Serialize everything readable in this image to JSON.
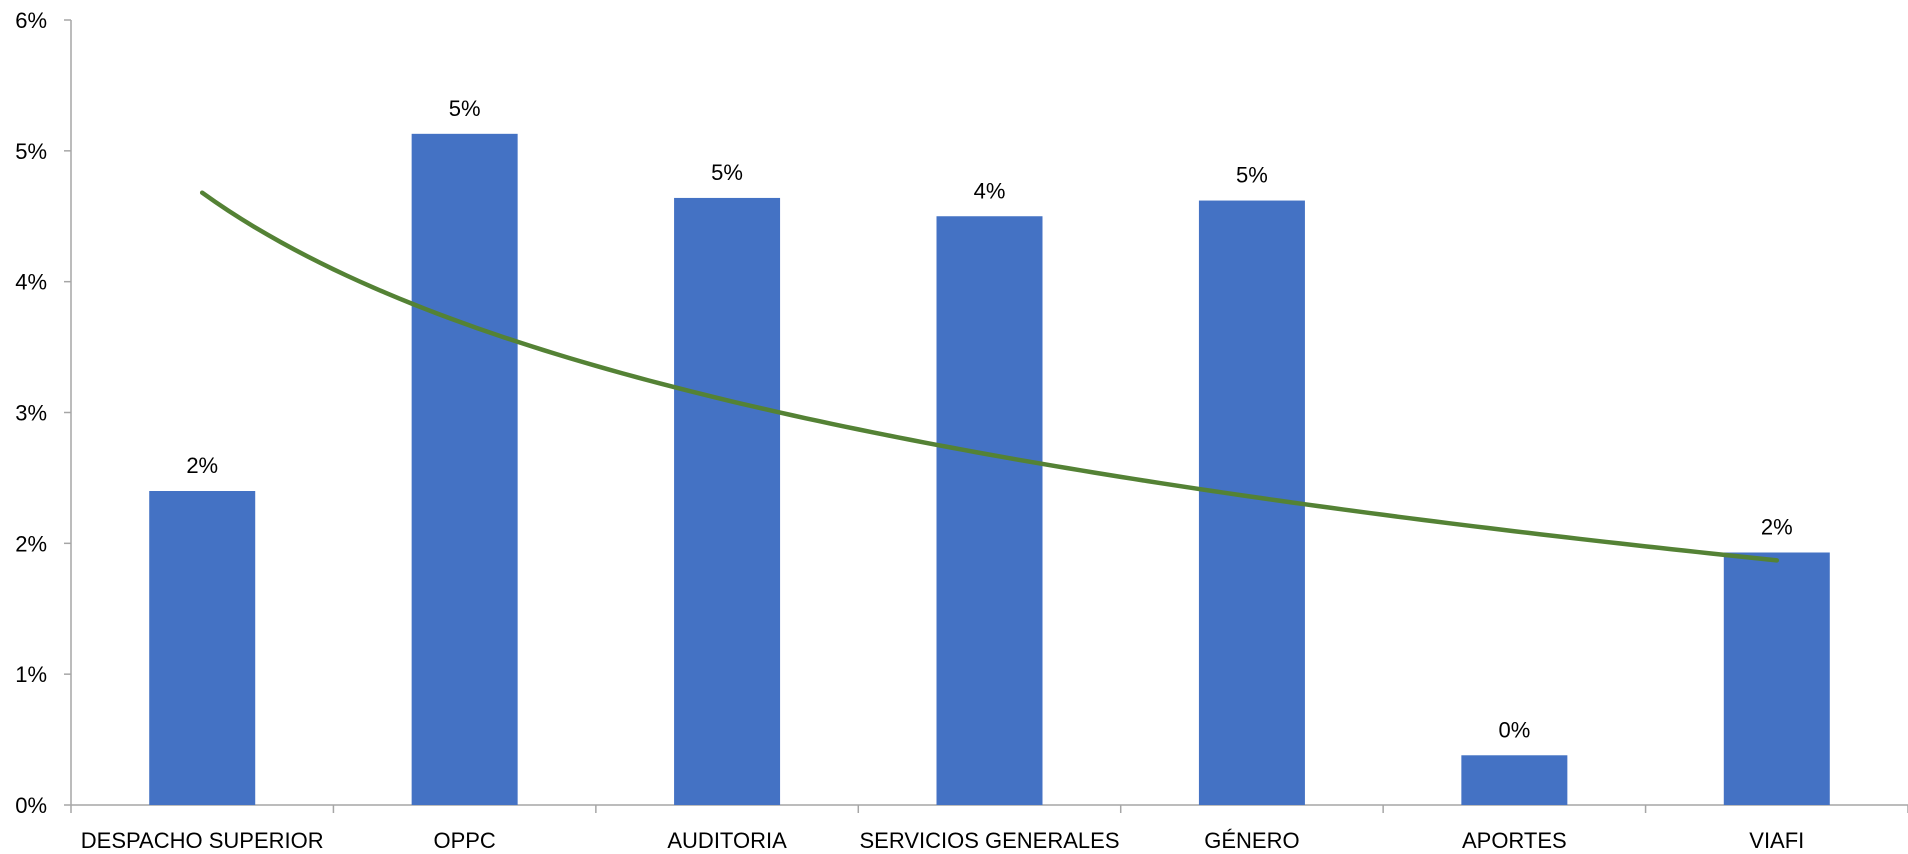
{
  "chart_data": {
    "type": "bar",
    "categories": [
      "DESPACHO SUPERIOR",
      "OPPC",
      "AUDITORIA",
      "SERVICIOS GENERALES",
      "GÉNERO",
      "APORTES",
      "VIAFI"
    ],
    "values": [
      2.4,
      5.13,
      4.64,
      4.5,
      4.62,
      0.38,
      1.93
    ],
    "data_labels": [
      "2%",
      "5%",
      "5%",
      "4%",
      "5%",
      "0%",
      "2%"
    ],
    "ylim": [
      0,
      6
    ],
    "yticks": [
      0,
      1,
      2,
      3,
      4,
      5,
      6
    ],
    "ytick_labels": [
      "0%",
      "1%",
      "2%",
      "3%",
      "4%",
      "5%",
      "6%"
    ],
    "title": "",
    "xlabel": "",
    "ylabel": "",
    "grid": false,
    "trendline": {
      "type": "logarithmic",
      "values": [
        4.68,
        3.47,
        2.79,
        2.41,
        2.17,
        2.0,
        1.87
      ]
    },
    "colors": {
      "bar": "#4472C4",
      "trendline": "#548235",
      "axis": "#A6A6A6"
    }
  }
}
